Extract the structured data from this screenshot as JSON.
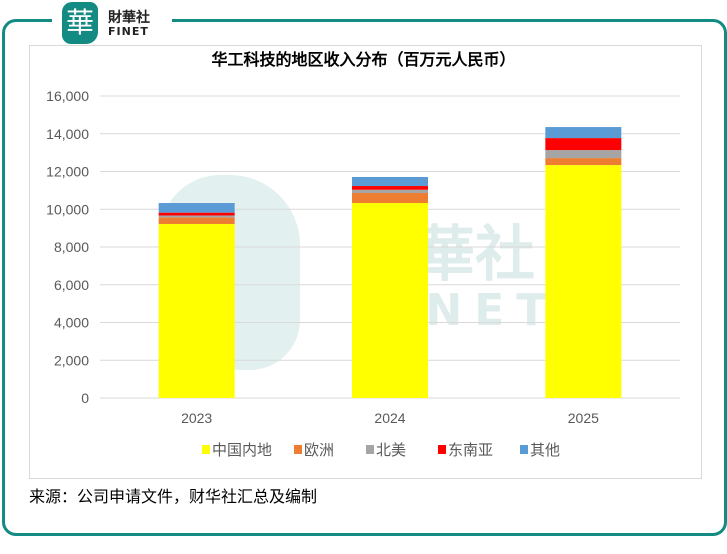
{
  "brand": {
    "logo_glyph": "華",
    "name_cn": "財華社",
    "name_en": "FINET"
  },
  "source_note": "来源：公司申请文件，财华社汇总及编制",
  "chart_data": {
    "type": "bar",
    "stacked": true,
    "title": "华工科技的地区收入分布（百万元人民币）",
    "xlabel": "",
    "ylabel": "",
    "categories": [
      "2023",
      "2024",
      "2025"
    ],
    "ylim": [
      0,
      16000
    ],
    "yticks": [
      "0",
      "2,000",
      "4,000",
      "6,000",
      "8,000",
      "10,000",
      "12,000",
      "14,000",
      "16,000"
    ],
    "grid": true,
    "legend_position": "bottom",
    "series": [
      {
        "name": "中国内地",
        "color": "#ffff00",
        "values": [
          9220,
          10330,
          12340
        ]
      },
      {
        "name": "欧洲",
        "color": "#ed7d31",
        "values": [
          350,
          530,
          370
        ]
      },
      {
        "name": "北美",
        "color": "#a5a5a5",
        "values": [
          100,
          175,
          425
        ]
      },
      {
        "name": "东南亚",
        "color": "#ff0000",
        "values": [
          150,
          195,
          635
        ]
      },
      {
        "name": "其他",
        "color": "#5b9bd5",
        "values": [
          510,
          480,
          585
        ]
      }
    ]
  }
}
